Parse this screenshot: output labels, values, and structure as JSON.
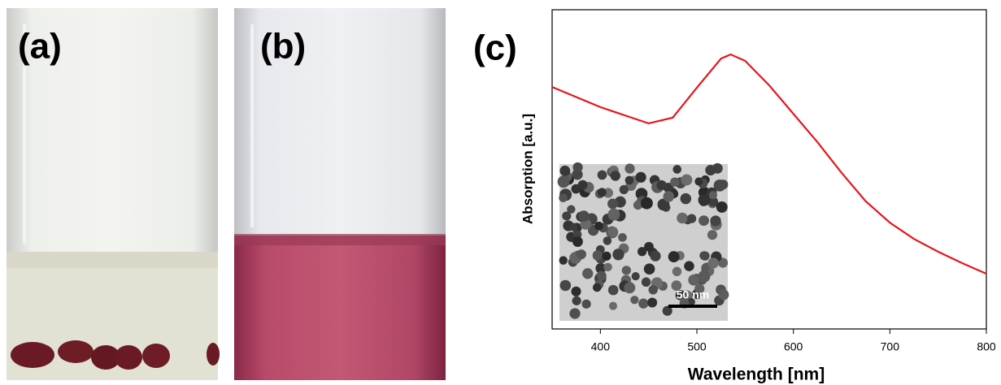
{
  "panel_labels": [
    "(a)",
    "(b)",
    "(c)"
  ],
  "chart_data": {
    "type": "line",
    "x_label": "Wavelength [nm]",
    "y_label": "Absorption [a.u.]",
    "inset_scale_label": "50 nm",
    "x": [
      350,
      400,
      450,
      475,
      500,
      525,
      535,
      550,
      575,
      600,
      625,
      650,
      675,
      700,
      725,
      750,
      775,
      800
    ],
    "series": [
      {
        "color": "#e8141b",
        "values": [
          0.758,
          0.695,
          0.644,
          0.662,
          0.756,
          0.847,
          0.86,
          0.84,
          0.763,
          0.674,
          0.585,
          0.489,
          0.4,
          0.333,
          0.282,
          0.242,
          0.206,
          0.173
        ]
      }
    ],
    "xlim": [
      350,
      800
    ],
    "xticks": [
      400,
      500,
      600,
      700,
      800
    ],
    "ylim": [
      0,
      1
    ]
  }
}
